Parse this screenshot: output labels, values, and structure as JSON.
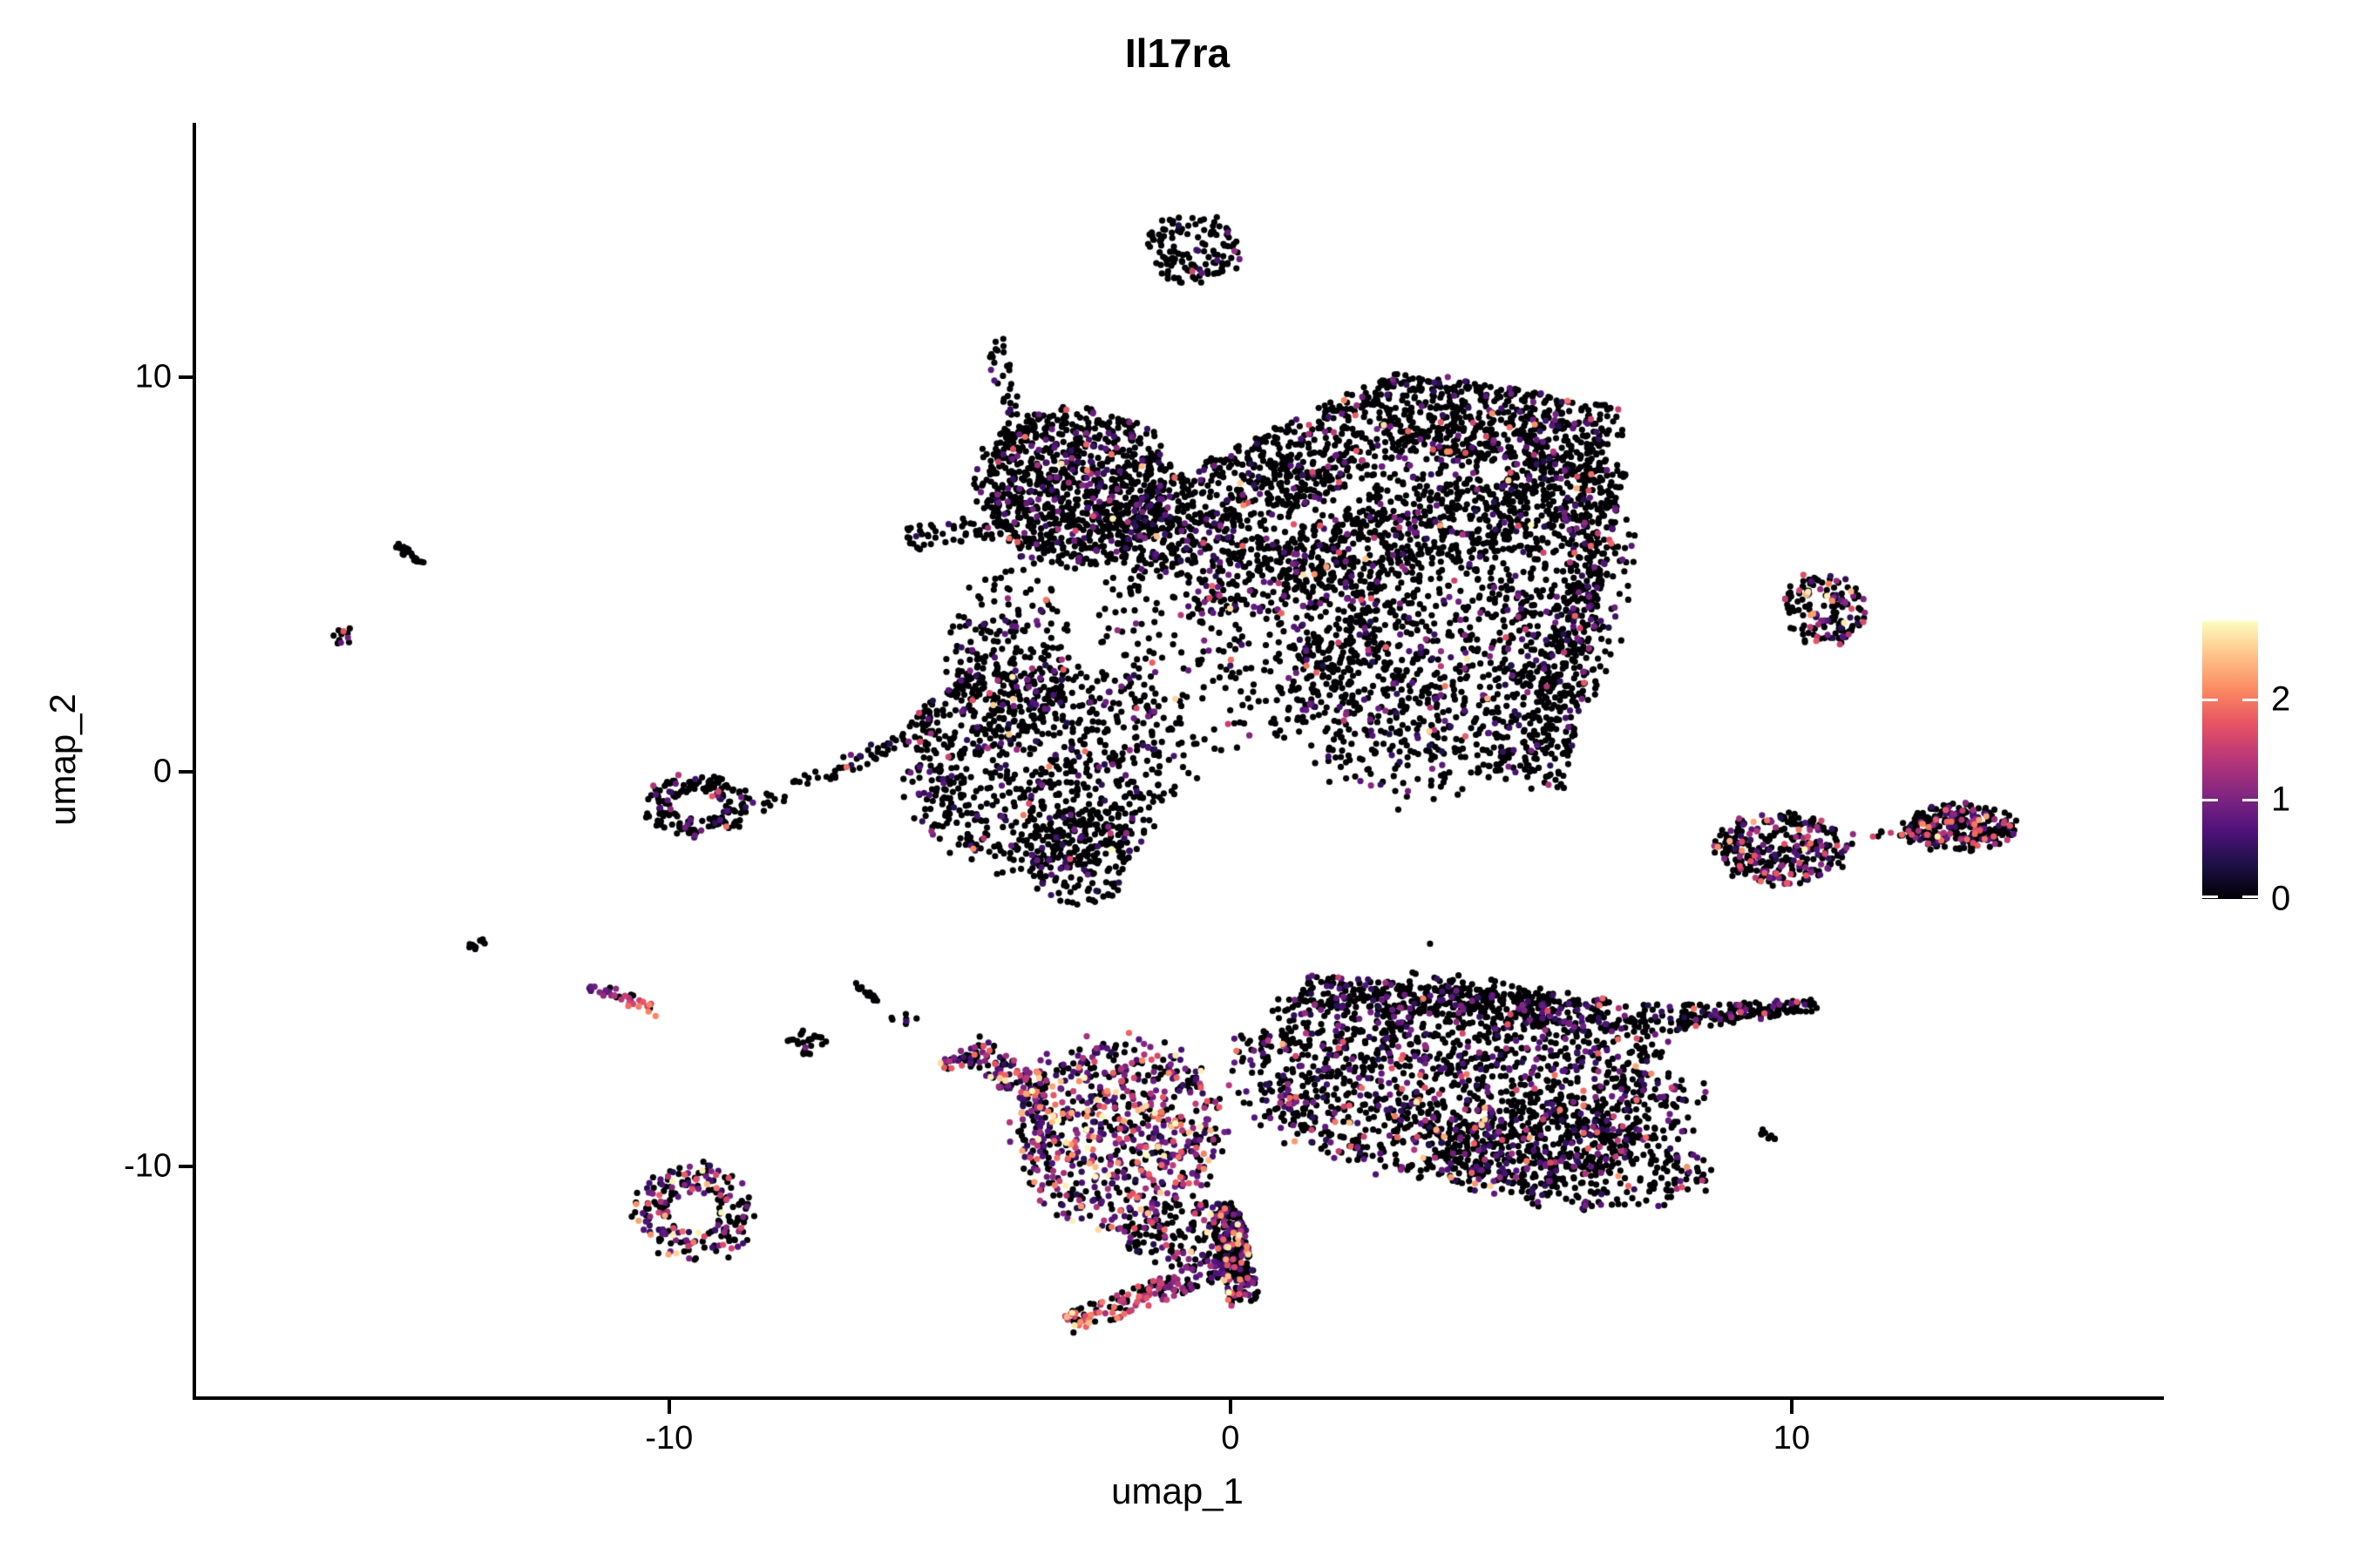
{
  "title": "Il17ra",
  "axes": {
    "x": {
      "label": "umap_1",
      "domain": [
        -18.46,
        16.57
      ],
      "ticks": [
        -10,
        0,
        10
      ]
    },
    "y": {
      "label": "umap_2",
      "domain": [
        -15.83,
        16.45
      ],
      "ticks": [
        -10,
        0,
        10
      ]
    }
  },
  "legend": {
    "position": "right",
    "values": [
      2,
      1,
      0
    ],
    "vmax": 2.79,
    "colormap": [
      "#000004",
      "#1D1147",
      "#51127C",
      "#822681",
      "#B63679",
      "#E65164",
      "#FB8861",
      "#FEC287",
      "#FCFDBF"
    ]
  },
  "chart_data": {
    "type": "scatter",
    "title": "Il17ra",
    "xlabel": "umap_1",
    "ylabel": "umap_2",
    "x_range": [
      -18.46,
      16.57
    ],
    "y_range": [
      -15.83,
      16.45
    ],
    "grid": false,
    "legend_position": "right",
    "point_radius_px": 3.6,
    "expression_scale": {
      "min": 0,
      "max": 2.79,
      "colormap": "magma"
    },
    "expression_buckets": {
      "zero": 0,
      "low": [
        0.35,
        1.0
      ],
      "mid": [
        1.0,
        2.0
      ],
      "high": [
        2.0,
        2.79
      ]
    },
    "clusters": [
      {
        "name": "top-blob",
        "shape": "disc",
        "cx": -0.7,
        "cy": 13.25,
        "rx": 0.85,
        "ry": 0.93,
        "n": 130,
        "expr": [
          0.9,
          0.07,
          0.03,
          0
        ]
      },
      {
        "name": "top-streak",
        "shape": "seg",
        "x1": -4.22,
        "y1": 10.95,
        "x2": -3.73,
        "y2": 8.08,
        "w": 0.24,
        "n": 45,
        "expr": [
          0.93,
          0.05,
          0.02,
          0
        ]
      },
      {
        "name": "upper-left-lobe",
        "shape": "disc",
        "cx": -2.75,
        "cy": 7.2,
        "rx": 1.71,
        "ry": 1.99,
        "n": 950,
        "expr": [
          0.85,
          0.115,
          0.03,
          0.005
        ]
      },
      {
        "name": "upper-left-arm",
        "shape": "seg",
        "x1": -5.78,
        "y1": 5.87,
        "x2": -4.07,
        "y2": 6.31,
        "w": 0.28,
        "n": 50,
        "expr": [
          0.92,
          0.06,
          0.02,
          0
        ]
      },
      {
        "name": "upper-band-left",
        "shape": "seg",
        "x1": -1.74,
        "y1": 5.87,
        "x2": 3.23,
        "y2": 9.18,
        "w": 0.96,
        "n": 700,
        "expr": [
          0.88,
          0.09,
          0.025,
          0.005
        ]
      },
      {
        "name": "upper-band-right",
        "shape": "seg",
        "x1": 3.23,
        "y1": 9.18,
        "x2": 6.8,
        "y2": 8.3,
        "w": 0.88,
        "n": 550,
        "expr": [
          0.88,
          0.09,
          0.025,
          0.005
        ]
      },
      {
        "name": "upper-band-under",
        "shape": "seg",
        "x1": -0.96,
        "y1": 4.55,
        "x2": 6.02,
        "y2": 7.2,
        "w": 0.8,
        "n": 500,
        "expr": [
          0.88,
          0.09,
          0.025,
          0.005
        ]
      },
      {
        "name": "upper-right-body",
        "shape": "disc",
        "cx": 4.01,
        "cy": 3.88,
        "rx": 2.95,
        "ry": 4.53,
        "rot": -12,
        "n": 1500,
        "expr": [
          0.87,
          0.1,
          0.025,
          0.005
        ]
      },
      {
        "name": "upper-right-edge",
        "shape": "seg",
        "x1": 6.65,
        "y1": 7.64,
        "x2": 5.56,
        "y2": -0.31,
        "w": 0.52,
        "n": 350,
        "expr": [
          0.88,
          0.1,
          0.02,
          0
        ]
      },
      {
        "name": "upper-mid-valley",
        "shape": "disc",
        "cx": 0.28,
        "cy": 4.11,
        "rx": 2.6,
        "ry": 3.4,
        "n": 420,
        "expr": [
          0.86,
          0.1,
          0.03,
          0.01
        ]
      },
      {
        "name": "upper-lower-lobe",
        "shape": "disc",
        "cx": -3.29,
        "cy": 0.13,
        "rx": 2.5,
        "ry": 2.65,
        "n": 850,
        "expr": [
          0.88,
          0.09,
          0.025,
          0.005
        ]
      },
      {
        "name": "upper-lower-tip",
        "shape": "disc",
        "cx": -2.67,
        "cy": -2.08,
        "rx": 0.95,
        "ry": 1.25,
        "n": 170,
        "expr": [
          0.88,
          0.09,
          0.03,
          0
        ]
      },
      {
        "name": "upper-neck",
        "shape": "disc",
        "cx": -3.91,
        "cy": 3.0,
        "rx": 1.1,
        "ry": 2.2,
        "n": 220,
        "expr": [
          0.9,
          0.08,
          0.02,
          0
        ]
      },
      {
        "name": "left-ring",
        "shape": "ring",
        "cx": -9.5,
        "cy": -0.86,
        "rx": 0.96,
        "ry": 0.77,
        "ir": 0.45,
        "n": 170,
        "expr": [
          0.82,
          0.13,
          0.05,
          0
        ]
      },
      {
        "name": "ring-chain",
        "shape": "seg",
        "x1": -8.57,
        "y1": -0.97,
        "x2": -5.9,
        "y2": 0.79,
        "w": 0.2,
        "n": 55,
        "expr": [
          0.92,
          0.06,
          0.02,
          0
        ]
      },
      {
        "name": "chain-arm",
        "shape": "seg",
        "x1": -5.9,
        "y1": 0.79,
        "x2": -4.6,
        "y2": 2.6,
        "w": 0.2,
        "n": 45,
        "expr": [
          0.92,
          0.06,
          0.02,
          0
        ]
      },
      {
        "name": "far-left-dash",
        "shape": "seg",
        "x1": -14.89,
        "y1": 5.83,
        "x2": -14.36,
        "y2": 5.21,
        "w": 0.1,
        "n": 26,
        "expr": [
          1,
          0,
          0,
          0
        ]
      },
      {
        "name": "far-left-dot",
        "shape": "disc",
        "cx": -15.79,
        "cy": 3.44,
        "rx": 0.18,
        "ry": 0.28,
        "n": 12,
        "expr": [
          0.68,
          0.12,
          0.2,
          0
        ]
      },
      {
        "name": "left-small-dash",
        "shape": "disc",
        "cx": -13.44,
        "cy": -4.35,
        "rx": 0.16,
        "ry": 0.15,
        "n": 10,
        "expr": [
          1,
          0,
          0,
          0
        ]
      },
      {
        "name": "left-grad-streak",
        "shape": "seg",
        "x1": -11.46,
        "y1": -5.36,
        "x2": -10.17,
        "y2": -6.09,
        "w": 0.14,
        "n": 36,
        "grad": true,
        "expr": [
          0.35,
          0.2,
          0.25,
          0.2
        ]
      },
      {
        "name": "mid-small-dash",
        "shape": "seg",
        "x1": -6.66,
        "y1": -5.34,
        "x2": -6.29,
        "y2": -5.76,
        "w": 0.08,
        "n": 16,
        "expr": [
          1,
          0,
          0,
          0
        ]
      },
      {
        "name": "mid-small-cluster",
        "shape": "disc",
        "cx": -7.56,
        "cy": -6.84,
        "rx": 0.36,
        "ry": 0.3,
        "rot": 25,
        "n": 26,
        "expr": [
          0.92,
          0.04,
          0.04,
          0
        ]
      },
      {
        "name": "beak-dots",
        "shape": "disc",
        "cx": -5.78,
        "cy": -6.27,
        "rx": 0.3,
        "ry": 0.2,
        "n": 7,
        "expr": [
          0.85,
          0.15,
          0,
          0
        ]
      },
      {
        "name": "beak-patch",
        "shape": "disc",
        "cx": -4.91,
        "cy": -7.4,
        "rx": 0.28,
        "ry": 0.2,
        "n": 18,
        "expr": [
          0.5,
          0.25,
          0.2,
          0.05
        ]
      },
      {
        "name": "whale-head",
        "shape": "disc",
        "cx": -2.05,
        "cy": -9.14,
        "rx": 1.9,
        "ry": 2.4,
        "n": 720,
        "expr": [
          0.4,
          0.28,
          0.24,
          0.08
        ]
      },
      {
        "name": "whale-beak",
        "shape": "seg",
        "x1": -4.69,
        "y1": -6.93,
        "x2": -3.29,
        "y2": -8.37,
        "w": 0.36,
        "n": 110,
        "expr": [
          0.45,
          0.27,
          0.2,
          0.08
        ]
      },
      {
        "name": "whale-body",
        "shape": "disc",
        "cx": 4.16,
        "cy": -7.81,
        "rx": 4.0,
        "ry": 2.6,
        "rot": -8,
        "n": 1750,
        "expr": [
          0.76,
          0.18,
          0.05,
          0.01
        ]
      },
      {
        "name": "whale-body-top",
        "shape": "seg",
        "x1": 1.21,
        "y1": -5.5,
        "x2": 7.58,
        "y2": -6.27,
        "w": 0.36,
        "n": 300,
        "expr": [
          0.85,
          0.12,
          0.03,
          0
        ]
      },
      {
        "name": "whale-right-tip",
        "shape": "seg",
        "x1": 7.58,
        "y1": -6.27,
        "x2": 10.4,
        "y2": -5.92,
        "w": 0.32,
        "n": 160,
        "taper": true,
        "expr": [
          0.82,
          0.14,
          0.04,
          0
        ]
      },
      {
        "name": "whale-lower-wing",
        "shape": "disc",
        "cx": 5.87,
        "cy": -9.8,
        "rx": 2.7,
        "ry": 1.2,
        "rot": -10,
        "n": 380,
        "expr": [
          0.8,
          0.15,
          0.04,
          0.01
        ]
      },
      {
        "name": "whale-tail",
        "shape": "seg",
        "x1": -0.12,
        "y1": -11.0,
        "x2": 0.25,
        "y2": -13.4,
        "w": 0.36,
        "n": 230,
        "expr": [
          0.68,
          0.16,
          0.12,
          0.04
        ]
      },
      {
        "name": "whale-foot",
        "shape": "seg",
        "x1": 0.12,
        "y1": -12.4,
        "x2": -2.9,
        "y2": -14.0,
        "w": 0.28,
        "n": 170,
        "grad": true,
        "expr": [
          0.45,
          0.2,
          0.2,
          0.15
        ]
      },
      {
        "name": "whale-tail-base",
        "shape": "disc",
        "cx": -0.81,
        "cy": -11.68,
        "rx": 1.1,
        "ry": 0.9,
        "n": 160,
        "expr": [
          0.7,
          0.18,
          0.1,
          0.02
        ]
      },
      {
        "name": "bottom-left-ring",
        "shape": "ring",
        "cx": -9.55,
        "cy": -11.17,
        "rx": 1.05,
        "ry": 1.25,
        "ir": 0.42,
        "n": 210,
        "expr": [
          0.55,
          0.25,
          0.16,
          0.04
        ]
      },
      {
        "name": "right-upper-island",
        "shape": "disc",
        "cx": 10.53,
        "cy": 4.11,
        "rx": 0.78,
        "ry": 0.92,
        "n": 150,
        "expr": [
          0.7,
          0.14,
          0.13,
          0.03
        ]
      },
      {
        "name": "right-mid-island",
        "shape": "disc",
        "cx": 9.83,
        "cy": -1.96,
        "rx": 1.2,
        "ry": 0.9,
        "n": 290,
        "expr": [
          0.66,
          0.17,
          0.14,
          0.03
        ]
      },
      {
        "name": "island-trail",
        "shape": "seg",
        "x1": 11.1,
        "y1": -1.6,
        "x2": 12.0,
        "y2": -1.55,
        "w": 0.06,
        "n": 8,
        "expr": [
          0.6,
          0.1,
          0.3,
          0
        ]
      },
      {
        "name": "right-far-island",
        "shape": "disc",
        "cx": 12.98,
        "cy": -1.41,
        "rx": 1.0,
        "ry": 0.58,
        "n": 300,
        "expr": [
          0.7,
          0.15,
          0.12,
          0.03
        ]
      },
      {
        "name": "right-tiny-dash",
        "shape": "seg",
        "x1": 9.45,
        "y1": -9.1,
        "x2": 9.73,
        "y2": -9.35,
        "w": 0.06,
        "n": 9,
        "expr": [
          1,
          0,
          0,
          0
        ]
      },
      {
        "name": "isolated-dot-1",
        "shape": "disc",
        "cx": 3.54,
        "cy": -4.39,
        "rx": 0.04,
        "ry": 0.04,
        "n": 1,
        "expr": [
          1,
          0,
          0,
          0
        ]
      },
      {
        "name": "isolated-dot-2",
        "shape": "disc",
        "cx": 11.61,
        "cy": -1.55,
        "rx": 0.04,
        "ry": 0.04,
        "n": 1,
        "expr": [
          1,
          0,
          0,
          0
        ]
      }
    ]
  }
}
